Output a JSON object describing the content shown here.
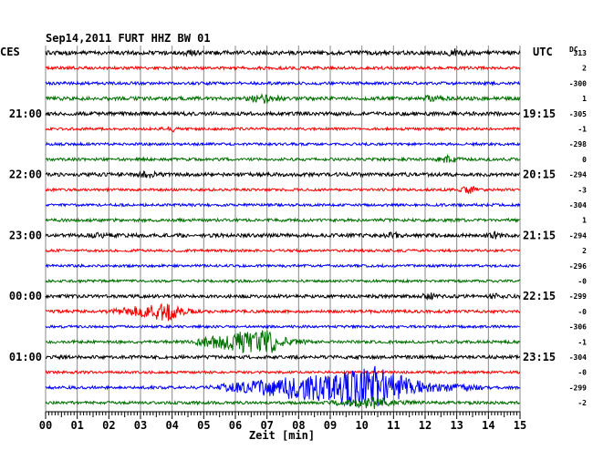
{
  "header": {
    "title": "Sep14,2011   FURT HHZ BW 01",
    "left_tz": "CES",
    "right_tz": "UTC",
    "dc_label": "DC"
  },
  "colors": {
    "trace_cycle": [
      "#000000",
      "#ff0000",
      "#0000ff",
      "#007000"
    ],
    "grid": "#888888",
    "axis": "#000000"
  },
  "chart_data": {
    "type": "line",
    "title": "Sep14,2011   FURT HHZ BW 01",
    "xlabel": "Zeit [min]",
    "ylabel": "",
    "x_range": [
      0,
      15
    ],
    "x_ticks": [
      "00",
      "01",
      "02",
      "03",
      "04",
      "05",
      "06",
      "07",
      "08",
      "09",
      "10",
      "11",
      "12",
      "13",
      "14",
      "15"
    ],
    "grid": true,
    "left_time_labels": [
      {
        "row": 4,
        "label": "21:00"
      },
      {
        "row": 8,
        "label": "22:00"
      },
      {
        "row": 12,
        "label": "23:00"
      },
      {
        "row": 16,
        "label": "00:00"
      },
      {
        "row": 20,
        "label": "01:00"
      }
    ],
    "right_time_labels": [
      {
        "row": 4,
        "label": "19:15"
      },
      {
        "row": 8,
        "label": "20:15"
      },
      {
        "row": 12,
        "label": "21:15"
      },
      {
        "row": 16,
        "label": "22:15"
      },
      {
        "row": 20,
        "label": "23:15"
      }
    ],
    "dc_offsets": [
      "313",
      "2",
      "-300",
      "1",
      "-305",
      "-1",
      "-298",
      "0",
      "-294",
      "-3",
      "-304",
      "1",
      "-294",
      "2",
      "-296",
      "-0",
      "-299",
      "-0",
      "-306",
      "-1",
      "-304",
      "-0",
      "-299",
      "-2"
    ],
    "traces": [
      {
        "row": 0,
        "color": "#000000",
        "noise": 2.2,
        "events": [
          {
            "start": 12.6,
            "end": 13.4,
            "amp": 4
          },
          {
            "start": 4.3,
            "end": 4.9,
            "amp": 3
          }
        ]
      },
      {
        "row": 1,
        "color": "#ff0000",
        "noise": 1.6,
        "events": []
      },
      {
        "row": 2,
        "color": "#0000ff",
        "noise": 1.6,
        "events": []
      },
      {
        "row": 3,
        "color": "#007000",
        "noise": 2.0,
        "events": [
          {
            "start": 6.1,
            "end": 7.8,
            "amp": 4
          },
          {
            "start": 11.8,
            "end": 12.8,
            "amp": 3
          }
        ]
      },
      {
        "row": 4,
        "color": "#000000",
        "noise": 2.0,
        "events": []
      },
      {
        "row": 5,
        "color": "#ff0000",
        "noise": 1.4,
        "events": [
          {
            "start": 3.6,
            "end": 4.4,
            "amp": 2.5
          }
        ]
      },
      {
        "row": 6,
        "color": "#0000ff",
        "noise": 1.4,
        "events": []
      },
      {
        "row": 7,
        "color": "#007000",
        "noise": 1.6,
        "events": [
          {
            "start": 12.3,
            "end": 13.3,
            "amp": 4
          }
        ]
      },
      {
        "row": 8,
        "color": "#000000",
        "noise": 2.0,
        "events": [
          {
            "start": 2.8,
            "end": 3.8,
            "amp": 3
          }
        ]
      },
      {
        "row": 9,
        "color": "#ff0000",
        "noise": 1.4,
        "events": [
          {
            "start": 13.0,
            "end": 13.9,
            "amp": 4
          }
        ]
      },
      {
        "row": 10,
        "color": "#0000ff",
        "noise": 1.4,
        "events": []
      },
      {
        "row": 11,
        "color": "#007000",
        "noise": 1.6,
        "events": []
      },
      {
        "row": 12,
        "color": "#000000",
        "noise": 2.0,
        "events": [
          {
            "start": 10.6,
            "end": 11.4,
            "amp": 3
          },
          {
            "start": 13.8,
            "end": 14.6,
            "amp": 3
          },
          {
            "start": 1.2,
            "end": 2.2,
            "amp": 2
          }
        ]
      },
      {
        "row": 13,
        "color": "#ff0000",
        "noise": 1.4,
        "events": []
      },
      {
        "row": 14,
        "color": "#0000ff",
        "noise": 1.4,
        "events": []
      },
      {
        "row": 15,
        "color": "#007000",
        "noise": 1.4,
        "events": []
      },
      {
        "row": 16,
        "color": "#000000",
        "noise": 1.8,
        "events": [
          {
            "start": 11.8,
            "end": 12.6,
            "amp": 3
          },
          {
            "start": 13.9,
            "end": 14.6,
            "amp": 2.5
          }
        ]
      },
      {
        "row": 17,
        "color": "#ff0000",
        "noise": 1.6,
        "events": [
          {
            "start": 1.8,
            "end": 4.9,
            "amp": 10,
            "peak": 3.9
          }
        ]
      },
      {
        "row": 18,
        "color": "#0000ff",
        "noise": 1.4,
        "events": []
      },
      {
        "row": 19,
        "color": "#007000",
        "noise": 1.6,
        "events": [
          {
            "start": 4.4,
            "end": 8.4,
            "amp": 16,
            "peak": 7.0
          }
        ]
      },
      {
        "row": 20,
        "color": "#000000",
        "noise": 1.8,
        "events": []
      },
      {
        "row": 21,
        "color": "#ff0000",
        "noise": 1.4,
        "events": []
      },
      {
        "row": 22,
        "color": "#0000ff",
        "noise": 1.6,
        "events": [
          {
            "start": 5.0,
            "end": 13.8,
            "amp": 24,
            "peak": 10.5
          }
        ]
      },
      {
        "row": 23,
        "color": "#007000",
        "noise": 1.6,
        "events": [
          {
            "start": 8.8,
            "end": 12.0,
            "amp": 6
          }
        ]
      }
    ]
  }
}
